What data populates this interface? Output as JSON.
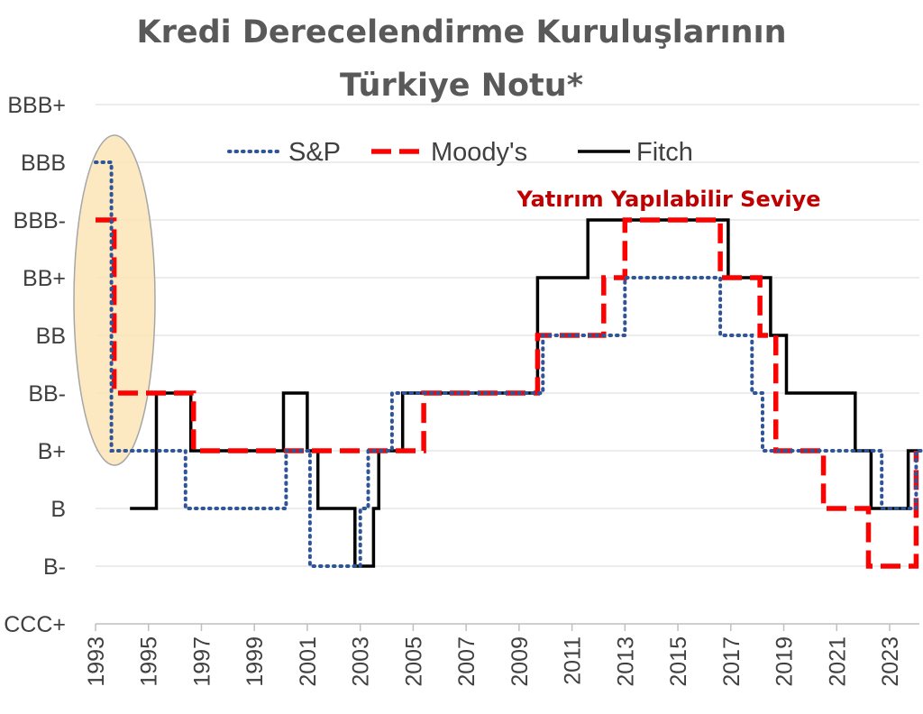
{
  "chart_data": {
    "type": "line",
    "title_lines": [
      "Kredi Derecelendirme Kuruluşlarının",
      "Türkiye Notu*"
    ],
    "y_categories": [
      "CCC+",
      "B-",
      "B",
      "B+",
      "BB-",
      "BB",
      "BB+",
      "BBB-",
      "BBB",
      "BBB+"
    ],
    "x_ticks": [
      "1993",
      "1995",
      "1997",
      "1999",
      "2001",
      "2003",
      "2005",
      "2007",
      "2009",
      "2011",
      "2013",
      "2015",
      "2017",
      "2019",
      "2021",
      "2023"
    ],
    "xlim": [
      1993,
      2024.2
    ],
    "annotation": {
      "text": "Yatırım Yapılabilir Seviye",
      "color": "#c00000"
    },
    "series": [
      {
        "name": "S&P",
        "color": "#2f5597",
        "style": "dotted",
        "points": [
          [
            1993.0,
            "BBB"
          ],
          [
            1993.6,
            "BBB"
          ],
          [
            1993.6,
            "B+"
          ],
          [
            1996.4,
            "B+"
          ],
          [
            1996.4,
            "B"
          ],
          [
            2000.2,
            "B"
          ],
          [
            2000.2,
            "B+"
          ],
          [
            2001.1,
            "B+"
          ],
          [
            2001.1,
            "B-"
          ],
          [
            2003.0,
            "B-"
          ],
          [
            2003.0,
            "B"
          ],
          [
            2003.3,
            "B"
          ],
          [
            2003.3,
            "B+"
          ],
          [
            2004.2,
            "B+"
          ],
          [
            2004.2,
            "BB-"
          ],
          [
            2009.9,
            "BB-"
          ],
          [
            2009.9,
            "BB"
          ],
          [
            2013.0,
            "BB"
          ],
          [
            2013.0,
            "BB+"
          ],
          [
            2016.6,
            "BB+"
          ],
          [
            2016.6,
            "BB"
          ],
          [
            2017.8,
            "BB"
          ],
          [
            2017.8,
            "BB-"
          ],
          [
            2018.2,
            "BB-"
          ],
          [
            2018.2,
            "B+"
          ],
          [
            2022.7,
            "B+"
          ],
          [
            2022.7,
            "B"
          ],
          [
            2024.0,
            "B"
          ],
          [
            2024.0,
            "B+"
          ],
          [
            2024.2,
            "B+"
          ]
        ]
      },
      {
        "name": "Moody's",
        "color": "#ff0000",
        "style": "dashed",
        "points": [
          [
            1993.0,
            "BBB-"
          ],
          [
            1993.7,
            "BBB-"
          ],
          [
            1993.7,
            "BB-"
          ],
          [
            1996.7,
            "BB-"
          ],
          [
            1996.7,
            "B+"
          ],
          [
            2005.4,
            "B+"
          ],
          [
            2005.4,
            "BB-"
          ],
          [
            2009.7,
            "BB-"
          ],
          [
            2009.7,
            "BB"
          ],
          [
            2012.2,
            "BB"
          ],
          [
            2012.2,
            "BB+"
          ],
          [
            2013.0,
            "BB+"
          ],
          [
            2013.0,
            "BBB-"
          ],
          [
            2016.6,
            "BBB-"
          ],
          [
            2016.6,
            "BB+"
          ],
          [
            2018.1,
            "BB+"
          ],
          [
            2018.1,
            "BB"
          ],
          [
            2018.7,
            "BB"
          ],
          [
            2018.7,
            "B+"
          ],
          [
            2020.5,
            "B+"
          ],
          [
            2020.5,
            "B"
          ],
          [
            2022.2,
            "B"
          ],
          [
            2022.2,
            "B-"
          ],
          [
            2024.0,
            "B-"
          ],
          [
            2024.0,
            "B+"
          ]
        ]
      },
      {
        "name": "Fitch",
        "color": "#000000",
        "style": "solid",
        "points": [
          [
            1994.3,
            "B"
          ],
          [
            1995.3,
            "B"
          ],
          [
            1995.3,
            "BB-"
          ],
          [
            1996.6,
            "BB-"
          ],
          [
            1996.6,
            "B+"
          ],
          [
            2000.1,
            "B+"
          ],
          [
            2000.1,
            "BB-"
          ],
          [
            2001.0,
            "BB-"
          ],
          [
            2001.0,
            "B+"
          ],
          [
            2001.4,
            "B+"
          ],
          [
            2001.4,
            "B"
          ],
          [
            2002.8,
            "B"
          ],
          [
            2002.8,
            "B-"
          ],
          [
            2003.5,
            "B-"
          ],
          [
            2003.5,
            "B"
          ],
          [
            2003.7,
            "B"
          ],
          [
            2003.7,
            "B+"
          ],
          [
            2004.6,
            "B+"
          ],
          [
            2004.6,
            "BB-"
          ],
          [
            2009.7,
            "BB-"
          ],
          [
            2009.7,
            "BB+"
          ],
          [
            2011.6,
            "BB+"
          ],
          [
            2011.6,
            "BBB-"
          ],
          [
            2016.9,
            "BBB-"
          ],
          [
            2016.9,
            "BB+"
          ],
          [
            2018.5,
            "BB+"
          ],
          [
            2018.5,
            "BB"
          ],
          [
            2019.1,
            "BB"
          ],
          [
            2019.1,
            "BB-"
          ],
          [
            2021.7,
            "BB-"
          ],
          [
            2021.7,
            "B+"
          ],
          [
            2022.3,
            "B+"
          ],
          [
            2022.3,
            "B"
          ],
          [
            2023.7,
            "B"
          ],
          [
            2023.7,
            "B+"
          ],
          [
            2024.2,
            "B+"
          ]
        ]
      }
    ]
  }
}
